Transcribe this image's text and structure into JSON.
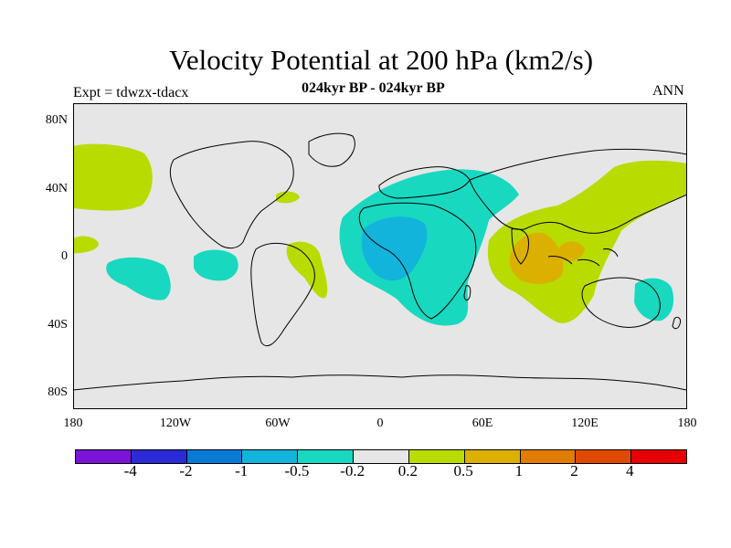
{
  "title": "Velocity Potential at 200 hPa (km2/s)",
  "subtitle": "024kyr BP - 024kyr BP",
  "experiment_label": "Expt = tdwzx-tdacx",
  "season": "ANN",
  "y_axis_labels": [
    "80N",
    "40N",
    "0",
    "40S",
    "80S"
  ],
  "x_axis_labels": [
    "180",
    "120W",
    "60W",
    "0",
    "60E",
    "120E",
    "180"
  ],
  "colorbar": {
    "colors": [
      "#7a14d6",
      "#2a2ad6",
      "#0a7ad6",
      "#12b4dc",
      "#18d8c0",
      "#e6e6e6",
      "#b8dc00",
      "#dcb000",
      "#e07c00",
      "#e04a00",
      "#e60000"
    ],
    "labels": [
      "-4",
      "-2",
      "-1",
      "-0.5",
      "-0.2",
      "0.2",
      "0.5",
      "1",
      "2",
      "4"
    ]
  },
  "map": {
    "background_color": "#e6e6e6",
    "coastline_color": "#000000"
  }
}
